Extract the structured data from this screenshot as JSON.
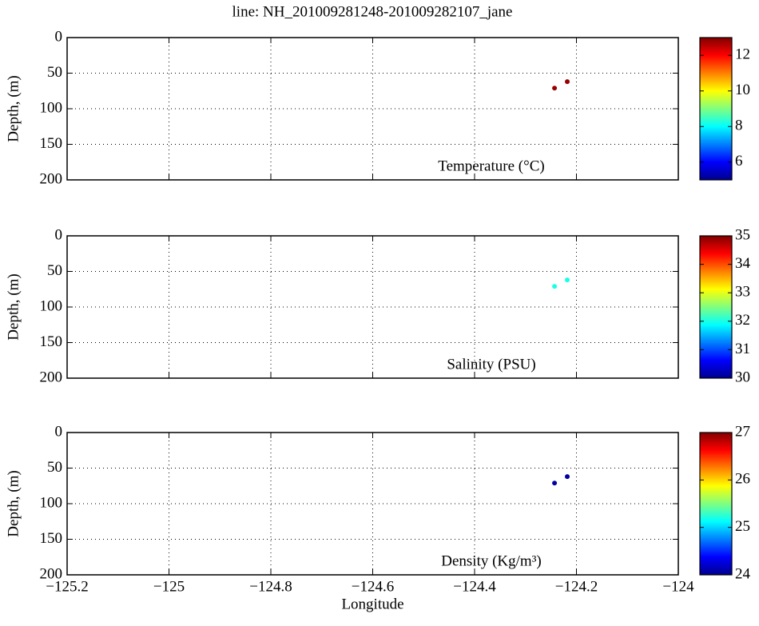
{
  "title": "line: NH_201009281248-201009282107_jane",
  "chart_data": [
    {
      "type": "scatter",
      "ylabel": "Depth, (m)",
      "annotation": "Temperature (°C)",
      "x": [
        -124.243,
        -124.218
      ],
      "y": [
        71,
        62
      ],
      "c": [
        12.8,
        12.8
      ],
      "xlim": [
        -125.2,
        -124
      ],
      "xticks": [
        -125.2,
        -125,
        -124.8,
        -124.6,
        -124.4,
        -124.2,
        -124
      ],
      "ylim": [
        200,
        0
      ],
      "yticks": [
        0,
        50,
        100,
        150,
        200
      ],
      "grid": true,
      "colormap": "jet",
      "clim": [
        5,
        13
      ],
      "cticks": [
        6,
        8,
        10,
        12
      ]
    },
    {
      "type": "scatter",
      "ylabel": "Depth, (m)",
      "annotation": "Salinity (PSU)",
      "x": [
        -124.243,
        -124.218
      ],
      "y": [
        71,
        62
      ],
      "c": [
        32,
        32
      ],
      "xlim": [
        -125.2,
        -124
      ],
      "xticks": [
        -125.2,
        -125,
        -124.8,
        -124.6,
        -124.4,
        -124.2,
        -124
      ],
      "ylim": [
        200,
        0
      ],
      "yticks": [
        0,
        50,
        100,
        150,
        200
      ],
      "grid": true,
      "colormap": "jet",
      "clim": [
        30,
        35
      ],
      "cticks": [
        30,
        31,
        32,
        33,
        34,
        35
      ]
    },
    {
      "type": "scatter",
      "ylabel": "Depth, (m)",
      "annotation": "Density (Kg/m³)",
      "xlabel": "Longitude",
      "x": [
        -124.243,
        -124.218
      ],
      "y": [
        71,
        62
      ],
      "c": [
        24.1,
        24.1
      ],
      "xlim": [
        -125.2,
        -124
      ],
      "xticks": [
        {
          "value": -125.2,
          "label": "−125.2"
        },
        {
          "value": -125,
          "label": "−125"
        },
        {
          "value": -124.8,
          "label": "−124.8"
        },
        {
          "value": -124.6,
          "label": "−124.6"
        },
        {
          "value": -124.4,
          "label": "−124.4"
        },
        {
          "value": -124.2,
          "label": "−124.2"
        },
        {
          "value": -124,
          "label": "−124"
        }
      ],
      "ylim": [
        200,
        0
      ],
      "yticks": [
        0,
        50,
        100,
        150,
        200
      ],
      "grid": true,
      "colormap": "jet",
      "clim": [
        24,
        27
      ],
      "cticks": [
        24,
        25,
        26,
        27
      ]
    }
  ]
}
